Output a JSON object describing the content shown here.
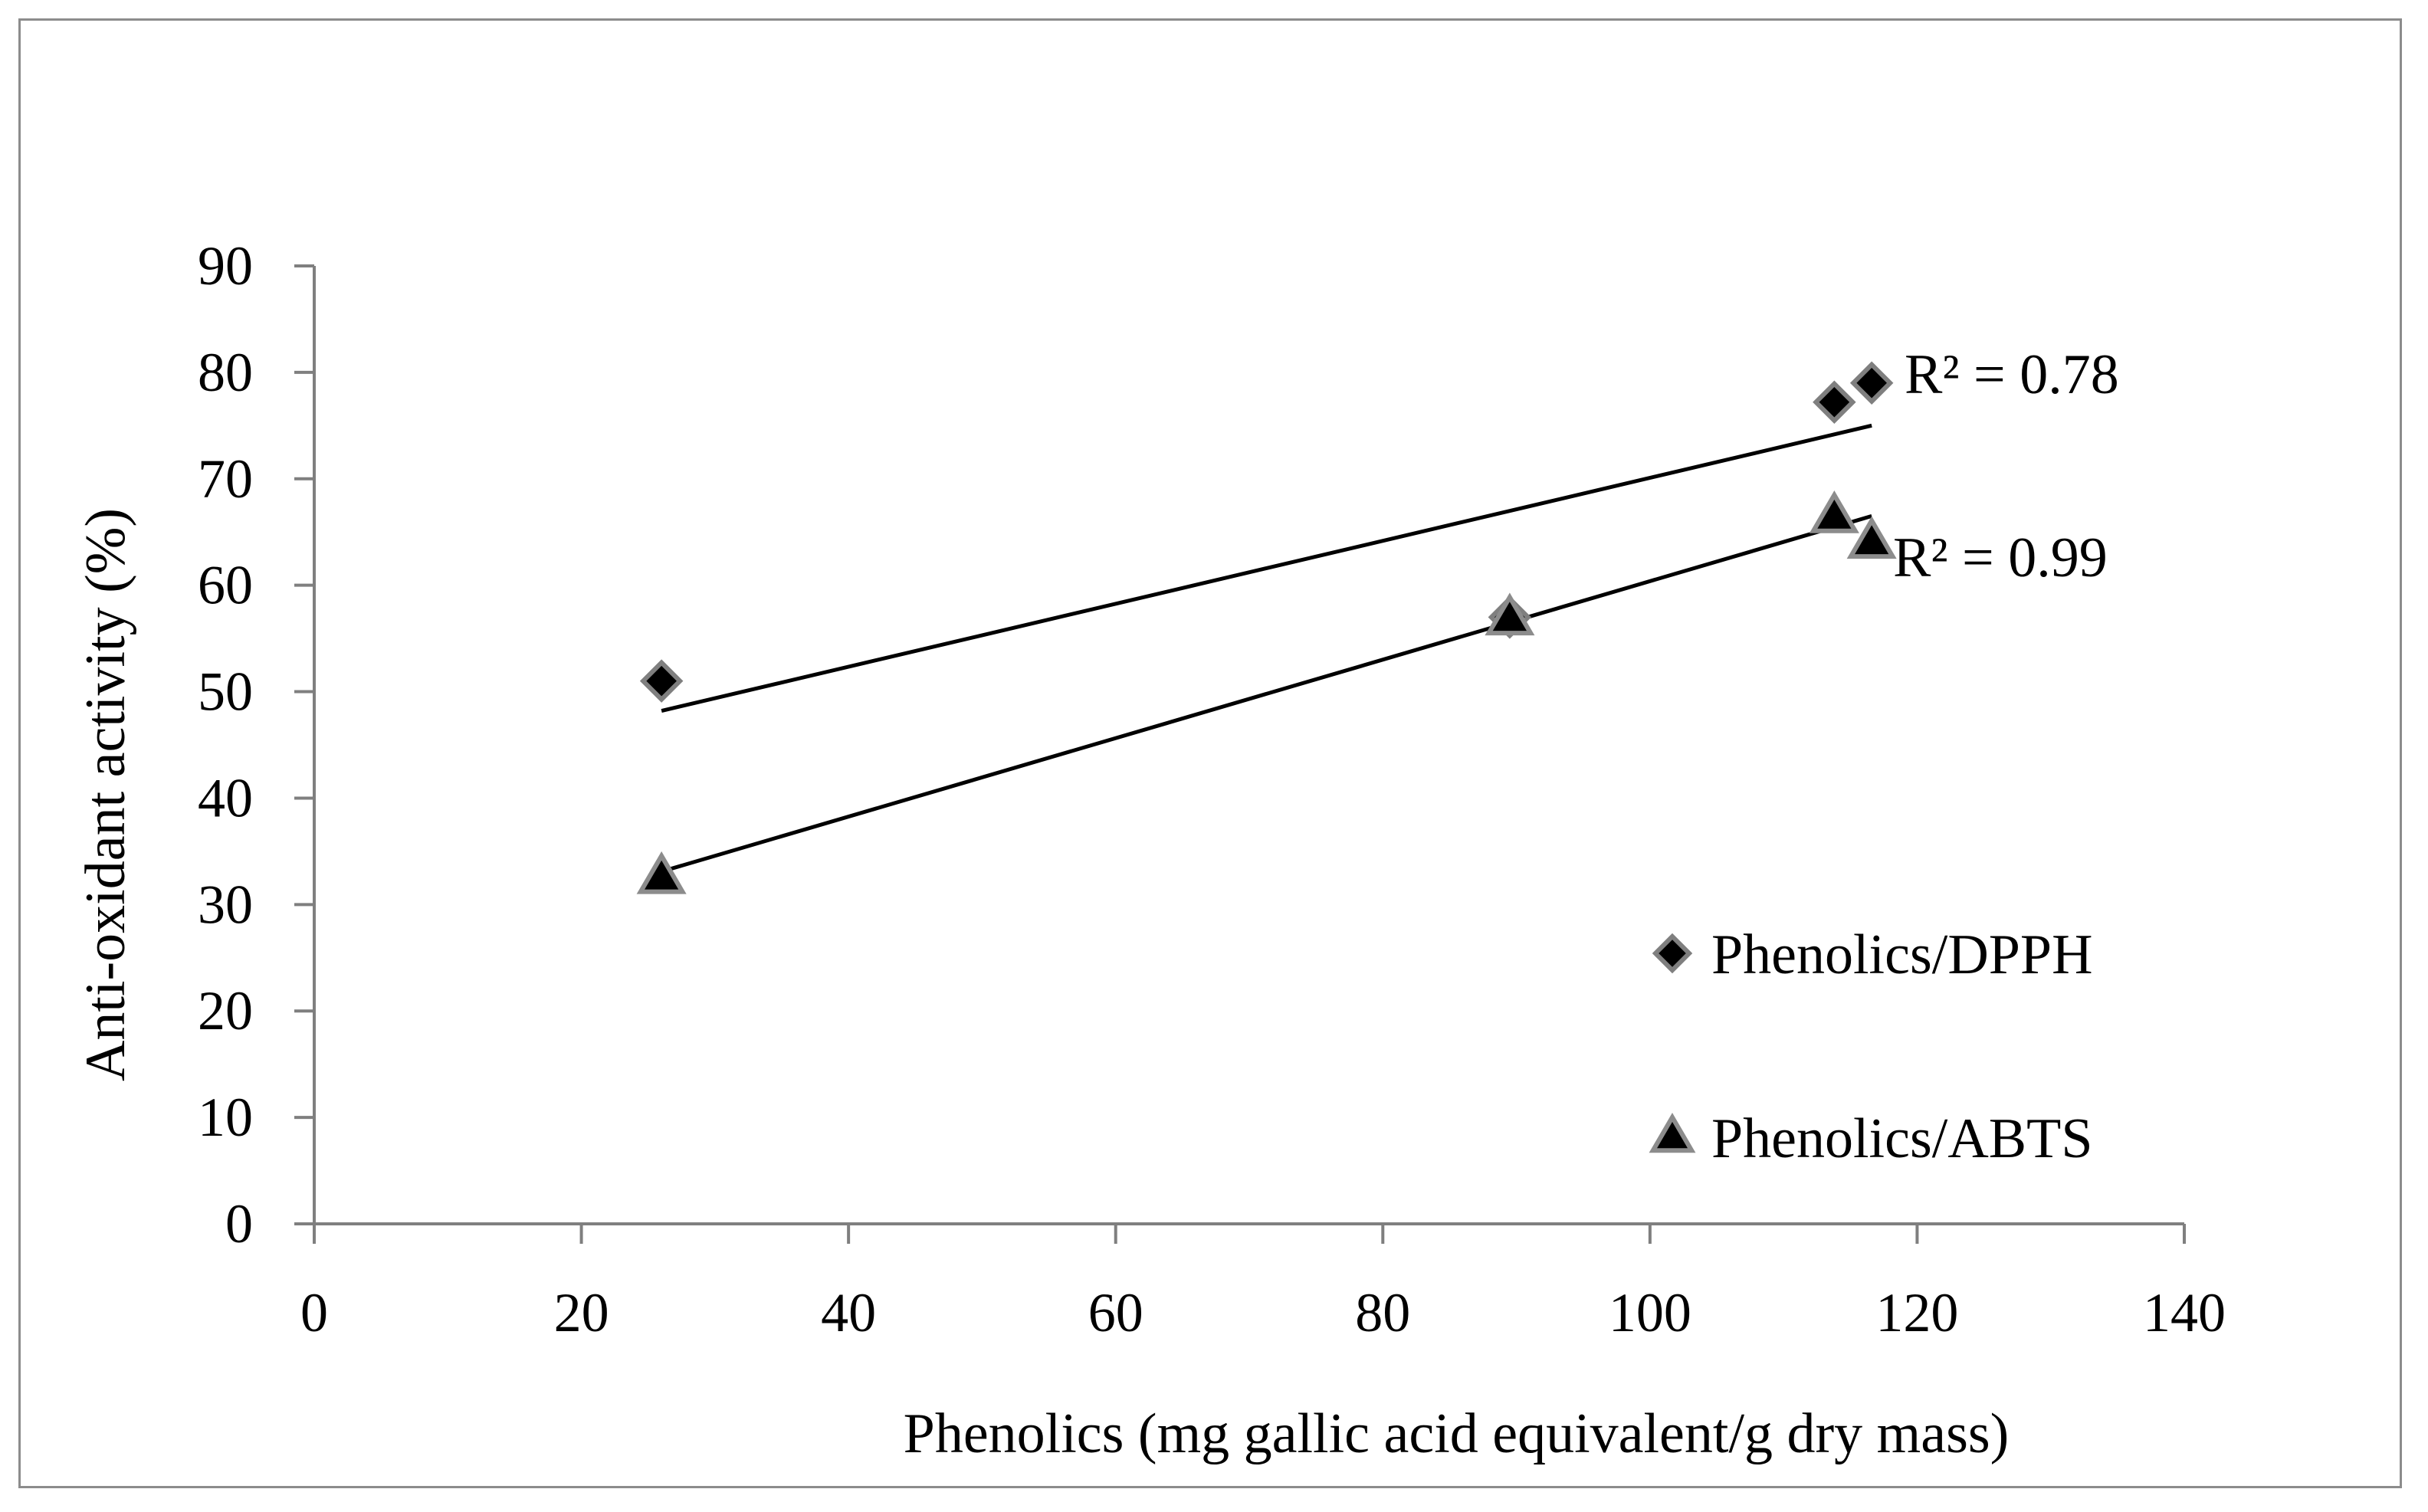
{
  "chart_data": {
    "type": "scatter",
    "xlabel": "Phenolics (mg gallic acid equivalent/g dry mass)",
    "ylabel": "Anti-oxidant activity (%)",
    "xlim": [
      0,
      140
    ],
    "ylim": [
      0,
      90
    ],
    "x_ticks": [
      0,
      20,
      40,
      60,
      80,
      100,
      120,
      140
    ],
    "y_ticks": [
      0,
      10,
      20,
      30,
      40,
      50,
      60,
      70,
      80,
      90
    ],
    "grid": false,
    "legend_position": "bottom-right",
    "series": [
      {
        "name": "Phenolics/DPPH",
        "marker": "diamond",
        "color": "#000000",
        "x": [
          26,
          89.5,
          113.8,
          116.6
        ],
        "y": [
          51,
          57,
          77.2,
          79
        ],
        "trendline": {
          "x": [
            26,
            116.6
          ],
          "y": [
            48.2,
            75
          ]
        },
        "r2_label": "R² = 0.78"
      },
      {
        "name": "Phenolics/ABTS",
        "marker": "triangle",
        "color": "#000000",
        "x": [
          26,
          89.5,
          113.8,
          116.6
        ],
        "y": [
          32.7,
          57,
          66.6,
          64.2
        ],
        "trendline": {
          "x": [
            26,
            116.6
          ],
          "y": [
            33.1,
            66.5
          ]
        },
        "r2_label": "R² = 0.99"
      }
    ]
  }
}
